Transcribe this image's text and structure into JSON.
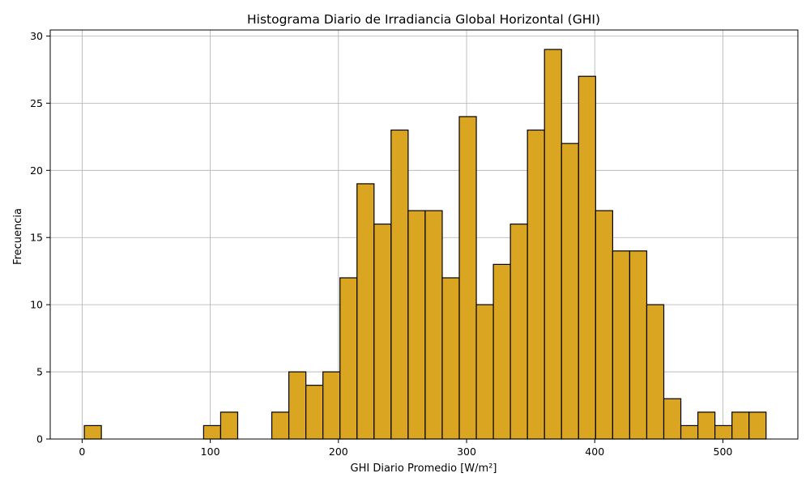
{
  "chart_data": {
    "type": "bar",
    "title": "Histograma Diario de Irradiancia Global Horizontal (GHI)",
    "xlabel": "GHI Diario Promedio [W/m²]",
    "ylabel": "Frecuencia",
    "bin_start": 1.7,
    "bin_width": 13.3,
    "values": [
      1,
      0,
      0,
      0,
      0,
      0,
      0,
      1,
      2,
      0,
      0,
      2,
      5,
      4,
      5,
      12,
      19,
      16,
      23,
      17,
      17,
      12,
      24,
      10,
      13,
      16,
      23,
      29,
      22,
      27,
      17,
      14,
      14,
      10,
      3,
      1,
      2,
      1,
      2,
      2
    ],
    "xlim": [
      -24.9,
      558.5
    ],
    "ylim": [
      0,
      30.45
    ],
    "xticks": [
      0,
      100,
      200,
      300,
      400,
      500
    ],
    "yticks": [
      0,
      5,
      10,
      15,
      20,
      25,
      30
    ],
    "bar_color": "#DAA520",
    "edge_color": "#000000",
    "grid": true
  }
}
